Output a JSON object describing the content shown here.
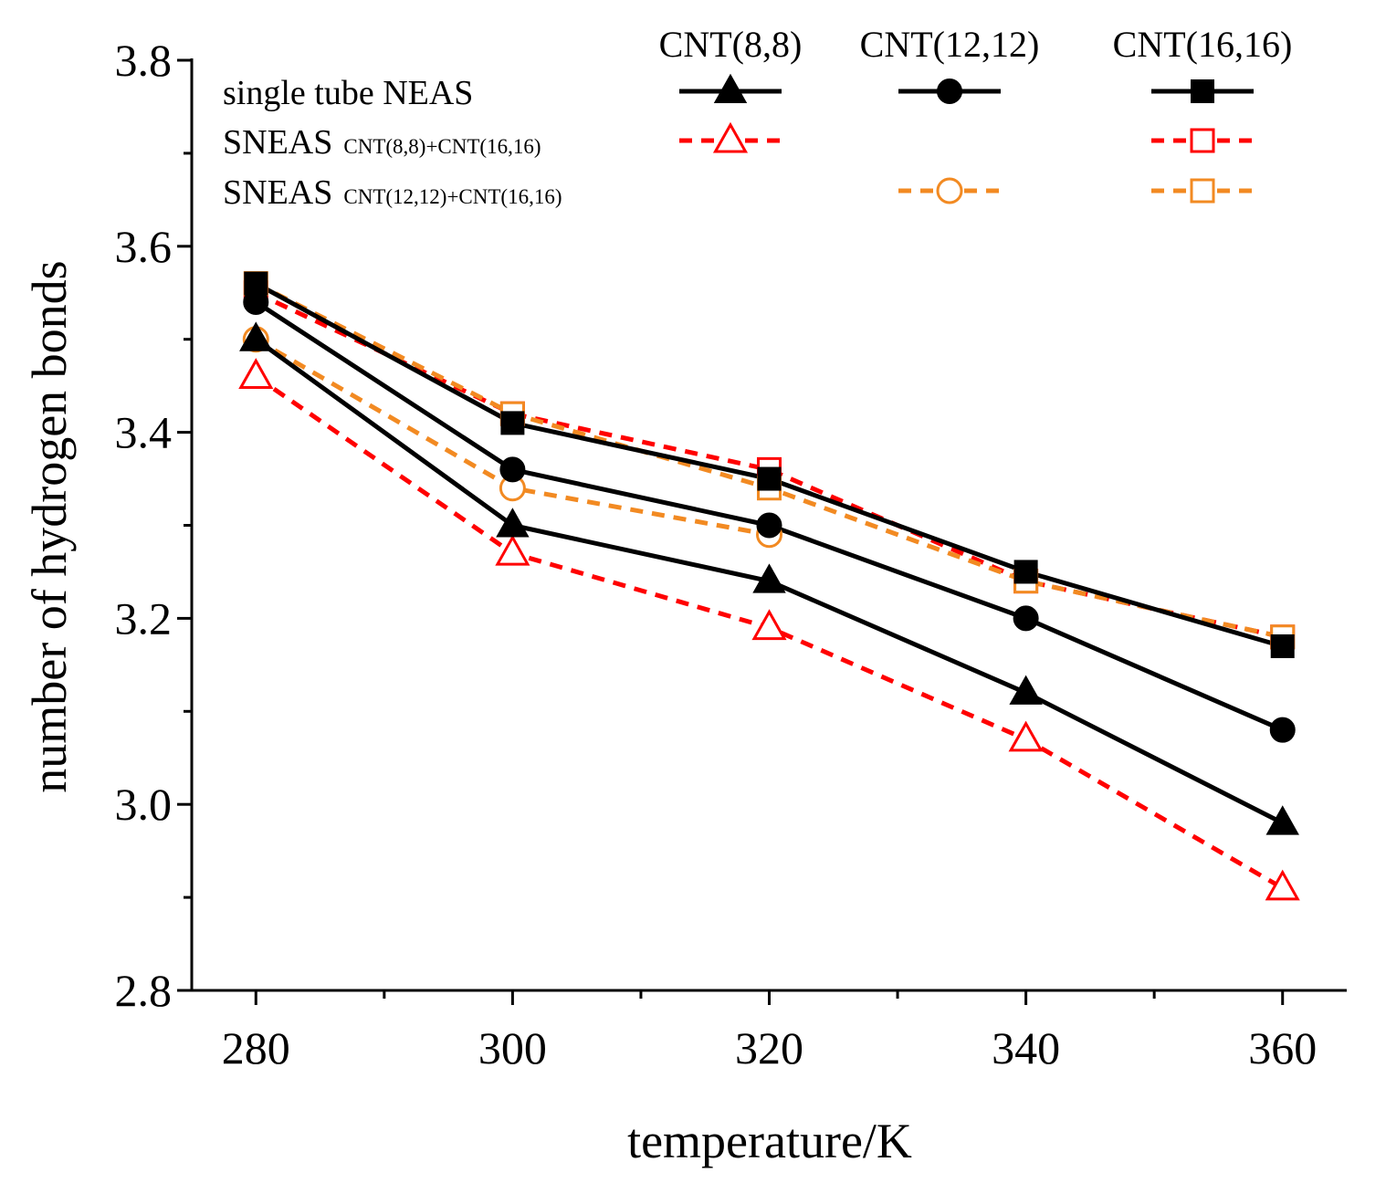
{
  "chart_data": {
    "type": "line",
    "title": "",
    "xlabel": "temperature/K",
    "ylabel": "number of hydrogen bonds",
    "xlim": [
      275,
      365
    ],
    "ylim": [
      2.8,
      3.8
    ],
    "x_ticks": [
      "280",
      "300",
      "320",
      "340",
      "360"
    ],
    "y_ticks": [
      "2.8",
      "3.0",
      "3.2",
      "3.4",
      "3.6",
      "3.8"
    ],
    "x": [
      280,
      300,
      320,
      340,
      360
    ],
    "legend": {
      "placement": "top",
      "columns": [
        "CNT(8,8)",
        "CNT(12,12)",
        "CNT(16,16)"
      ],
      "rows": [
        {
          "label": "single tube NEAS",
          "sub": ""
        },
        {
          "label": "SNEAS",
          "sub": "CNT(8,8)+CNT(16,16)"
        },
        {
          "label": "SNEAS",
          "sub": "CNT(12,12)+CNT(16,16)"
        }
      ]
    },
    "series": [
      {
        "name": "single tube NEAS CNT(8,8)",
        "row": 0,
        "col": 0,
        "values": [
          3.5,
          3.3,
          3.24,
          3.12,
          2.98
        ],
        "color": "#000000",
        "marker": "triangle",
        "filled": true,
        "dashed": false
      },
      {
        "name": "single tube NEAS CNT(12,12)",
        "row": 0,
        "col": 1,
        "values": [
          3.54,
          3.36,
          3.3,
          3.2,
          3.08
        ],
        "color": "#000000",
        "marker": "circle",
        "filled": true,
        "dashed": false
      },
      {
        "name": "single tube NEAS CNT(16,16)",
        "row": 0,
        "col": 2,
        "values": [
          3.56,
          3.41,
          3.35,
          3.25,
          3.17
        ],
        "color": "#000000",
        "marker": "square",
        "filled": true,
        "dashed": false
      },
      {
        "name": "SNEAS CNT(8,8)+CNT(16,16) CNT(8,8)",
        "row": 1,
        "col": 0,
        "values": [
          3.46,
          3.27,
          3.19,
          3.07,
          2.91
        ],
        "color": "#ff0000",
        "marker": "triangle",
        "filled": false,
        "dashed": true
      },
      {
        "name": "SNEAS CNT(8,8)+CNT(16,16) CNT(16,16)",
        "row": 1,
        "col": 2,
        "values": [
          3.55,
          3.42,
          3.36,
          3.24,
          3.18
        ],
        "color": "#ff0000",
        "marker": "square",
        "filled": false,
        "dashed": true
      },
      {
        "name": "SNEAS CNT(12,12)+CNT(16,16) CNT(12,12)",
        "row": 2,
        "col": 1,
        "values": [
          3.5,
          3.34,
          3.29,
          null,
          null
        ],
        "color": "#f28a22",
        "marker": "circle",
        "filled": false,
        "dashed": true
      },
      {
        "name": "SNEAS CNT(12,12)+CNT(16,16) CNT(16,16)",
        "row": 2,
        "col": 2,
        "values": [
          3.56,
          3.42,
          3.34,
          3.24,
          3.18
        ],
        "color": "#f28a22",
        "marker": "square",
        "filled": false,
        "dashed": true
      }
    ]
  }
}
